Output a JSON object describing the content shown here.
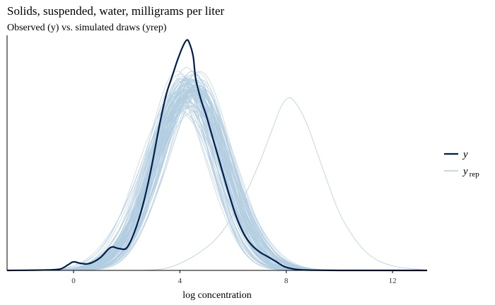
{
  "title": "Solids, suspended, water, milligrams per liter",
  "subtitle": "Observed (y) vs. simulated draws (yrep)",
  "colors": {
    "y": "#011f4b",
    "yrep": "#b3cde0",
    "axis": "#000000"
  },
  "chart_data": {
    "type": "line",
    "xlabel": "log concentration",
    "ylabel": "",
    "xlim": [
      -2.5,
      13.3
    ],
    "ylim": [
      0,
      1
    ],
    "x_ticks": [
      0,
      4,
      8,
      12
    ],
    "y_axis_ticks_shown": false,
    "grid": false,
    "legend_position": "right",
    "legend": [
      {
        "key": "y",
        "label": "y",
        "subscript": ""
      },
      {
        "key": "yrep",
        "label": "y",
        "subscript": "rep"
      }
    ],
    "observed": {
      "name": "y",
      "x": [
        -2.5,
        -1.0,
        -0.5,
        -0.2,
        0.0,
        0.3,
        0.6,
        1.0,
        1.4,
        1.7,
        2.0,
        2.3,
        2.6,
        2.9,
        3.1,
        3.3,
        3.5,
        3.7,
        3.9,
        4.1,
        4.25,
        4.35,
        4.5,
        4.6,
        4.8,
        5.0,
        5.2,
        5.5,
        5.8,
        6.1,
        6.4,
        6.7,
        7.0,
        7.3,
        7.6,
        7.9,
        8.2,
        8.5,
        9.0,
        10.0,
        11.0,
        12.0,
        13.3
      ],
      "y": [
        0.0,
        0.002,
        0.006,
        0.025,
        0.037,
        0.03,
        0.03,
        0.055,
        0.1,
        0.095,
        0.098,
        0.17,
        0.28,
        0.43,
        0.55,
        0.67,
        0.77,
        0.84,
        0.91,
        0.97,
        1.0,
        0.99,
        0.93,
        0.83,
        0.74,
        0.67,
        0.59,
        0.47,
        0.35,
        0.24,
        0.16,
        0.11,
        0.08,
        0.06,
        0.04,
        0.018,
        0.008,
        0.003,
        0.001,
        0.0,
        0.0,
        0.0,
        0.0
      ]
    },
    "replicates": {
      "name": "yrep",
      "count": 100,
      "shape": "smooth unimodal densities centred near 4.0-4.6 with peak heights 0.72-0.85 of the observed peak; one outlying draw centred near 8.1"
    },
    "outlier_rep": {
      "name": "yrep",
      "x": [
        2.0,
        3.0,
        3.5,
        4.0,
        4.5,
        5.0,
        5.3,
        5.6,
        6.0,
        6.5,
        7.0,
        7.5,
        7.8,
        8.1,
        8.4,
        8.8,
        9.2,
        9.6,
        10.0,
        10.5,
        11.0,
        11.5,
        12.0,
        12.5,
        13.0,
        13.3
      ],
      "y": [
        0.0,
        0.002,
        0.01,
        0.03,
        0.06,
        0.1,
        0.13,
        0.17,
        0.24,
        0.34,
        0.47,
        0.62,
        0.71,
        0.75,
        0.72,
        0.63,
        0.5,
        0.37,
        0.25,
        0.15,
        0.08,
        0.04,
        0.02,
        0.01,
        0.004,
        0.0
      ]
    }
  }
}
